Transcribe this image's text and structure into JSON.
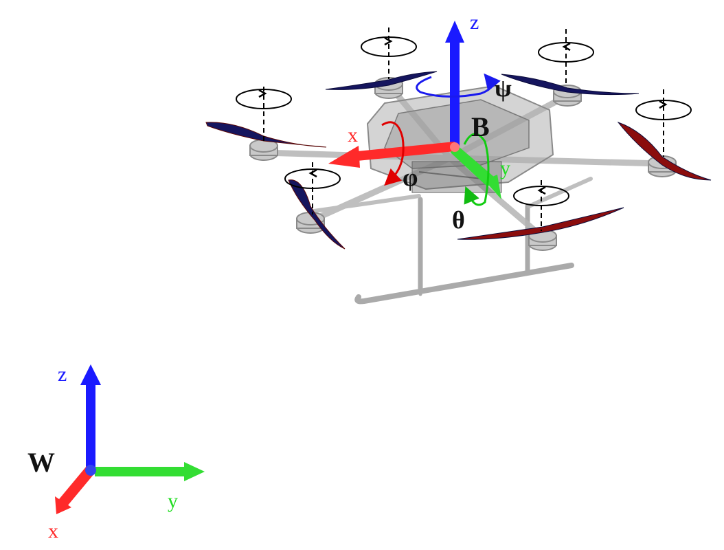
{
  "colors": {
    "x_axis": "#ff2a2a",
    "y_axis": "#22dd22",
    "z_axis": "#1a1aff",
    "propeller_front": "#8b0d0d",
    "propeller_rear": "#15155e",
    "frame": "#9a9a9a",
    "text": "#111111"
  },
  "body_frame": {
    "label": "B",
    "x_label": "x",
    "y_label": "y",
    "z_label": "z",
    "roll_label": "φ",
    "pitch_label": "θ",
    "yaw_label": "ψ"
  },
  "world_frame": {
    "label": "W",
    "x_label": "x",
    "y_label": "y",
    "z_label": "z"
  },
  "rotors": [
    {
      "id": 1,
      "spin": "ccw",
      "color_group": "rear"
    },
    {
      "id": 2,
      "spin": "cw",
      "color_group": "rear"
    },
    {
      "id": 3,
      "spin": "cw",
      "color_group": "rear"
    },
    {
      "id": 4,
      "spin": "cw",
      "color_group": "rear"
    },
    {
      "id": 5,
      "spin": "ccw",
      "color_group": "front"
    },
    {
      "id": 6,
      "spin": "ccw",
      "color_group": "front"
    }
  ]
}
